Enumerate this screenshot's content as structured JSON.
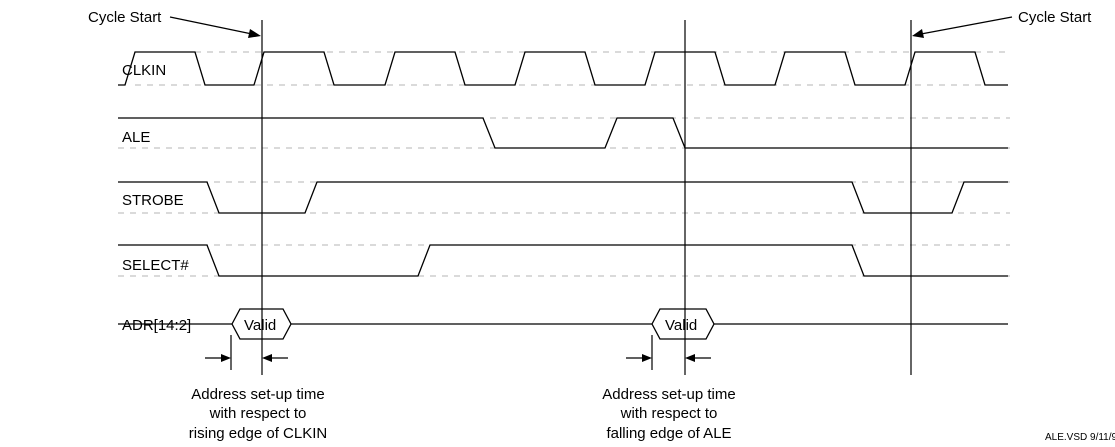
{
  "signals": {
    "clkin": "CLKIN",
    "ale": "ALE",
    "strobe": "STROBE",
    "select": "SELECT#",
    "adr": "ADR[14:2]"
  },
  "cycle_start_left": "Cycle Start",
  "cycle_start_right": "Cycle Start",
  "valid_labels": [
    "Valid",
    "Valid"
  ],
  "note_left": [
    "Address set-up time",
    "with respect to",
    "rising edge of CLKIN"
  ],
  "note_right": [
    "Address set-up time",
    "with respect to",
    "falling edge of ALE"
  ],
  "file_tag": "ALE.VSD  9/11/9"
}
